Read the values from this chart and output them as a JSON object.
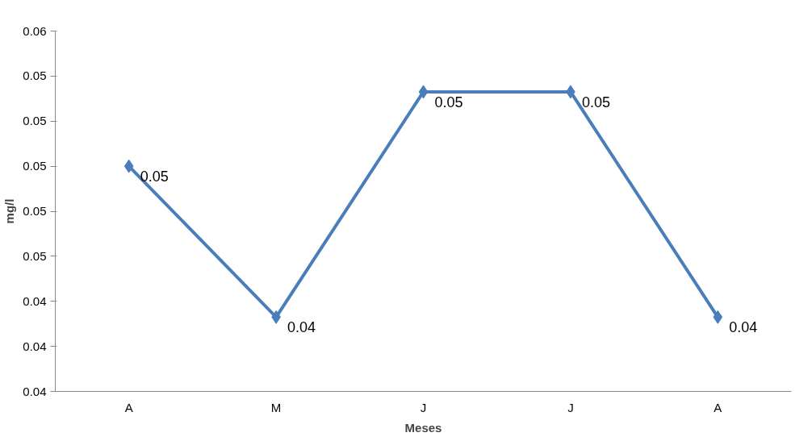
{
  "chart_data": {
    "type": "line",
    "xlabel": "Meses",
    "ylabel": "mg/l",
    "categories": [
      "A",
      "M",
      "J",
      "J",
      "A"
    ],
    "series": [
      {
        "color": "#4a7ebb",
        "values": [
          0.05,
          0.0433,
          0.0533,
          0.0533,
          0.0433
        ],
        "value_labels": [
          "0.05",
          "0.04",
          "0.05",
          "0.05",
          "0.04"
        ]
      }
    ],
    "ylim": [
      0.04,
      0.056
    ],
    "yticks": [
      {
        "value": 0.04,
        "label": "0.04"
      },
      {
        "value": 0.042,
        "label": "0.04"
      },
      {
        "value": 0.044,
        "label": "0.04"
      },
      {
        "value": 0.046,
        "label": "0.05"
      },
      {
        "value": 0.048,
        "label": "0.05"
      },
      {
        "value": 0.05,
        "label": "0.05"
      },
      {
        "value": 0.052,
        "label": "0.05"
      },
      {
        "value": 0.054,
        "label": "0.05"
      },
      {
        "value": 0.056,
        "label": "0.06"
      }
    ],
    "marker": "diamond",
    "line_style": "solid",
    "grid": false
  }
}
